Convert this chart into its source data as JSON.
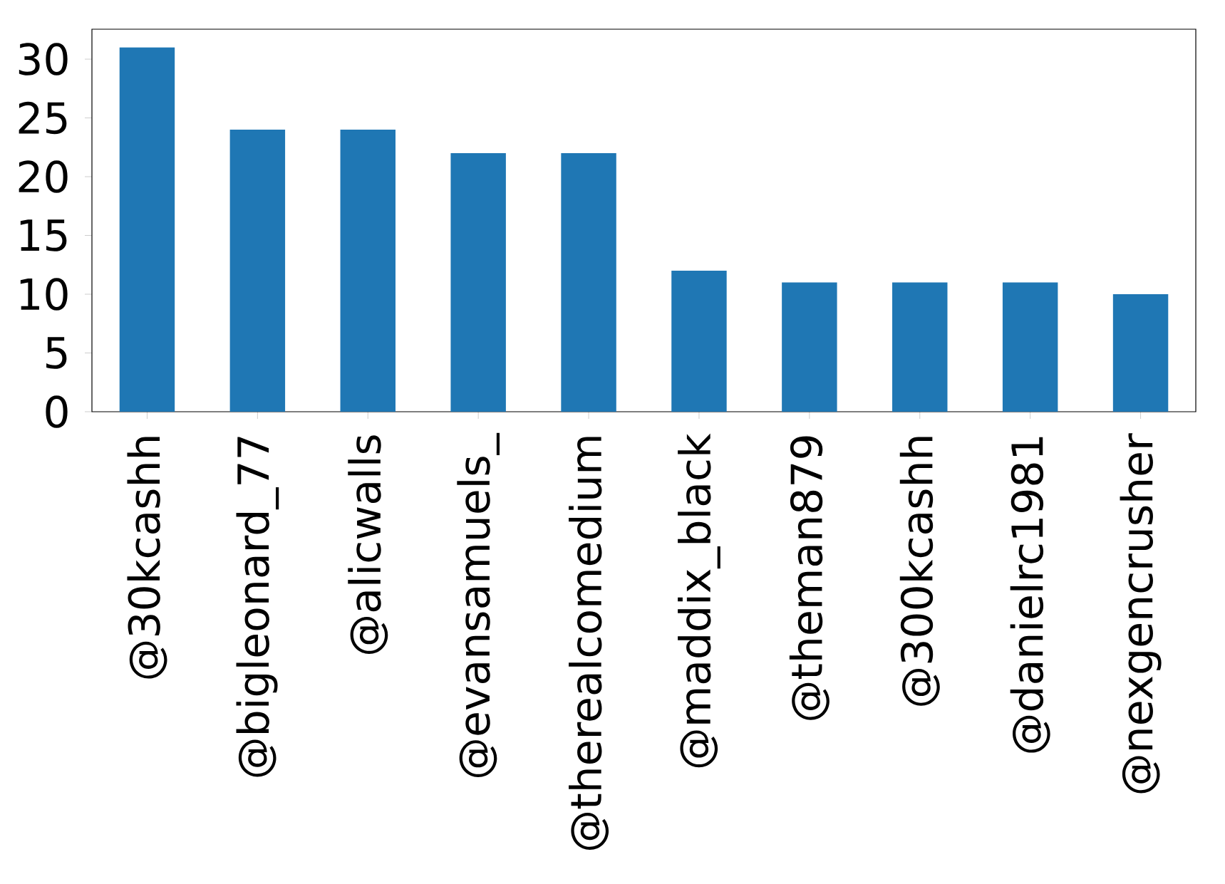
{
  "chart_data": {
    "type": "bar",
    "categories": [
      "@30kcashh",
      "@bigleonard_77",
      "@alicwalls",
      "@evansamuels_",
      "@therealcomedium",
      "@maddix_black",
      "@theman879",
      "@300kcashh",
      "@danielrc1981",
      "@nexgencrusher"
    ],
    "values": [
      31,
      24,
      24,
      22,
      22,
      12,
      11,
      11,
      11,
      10
    ],
    "color": "#1f77b4",
    "ylim": [
      0,
      32.55
    ],
    "yticks": [
      0,
      5,
      10,
      15,
      20,
      25,
      30
    ]
  }
}
